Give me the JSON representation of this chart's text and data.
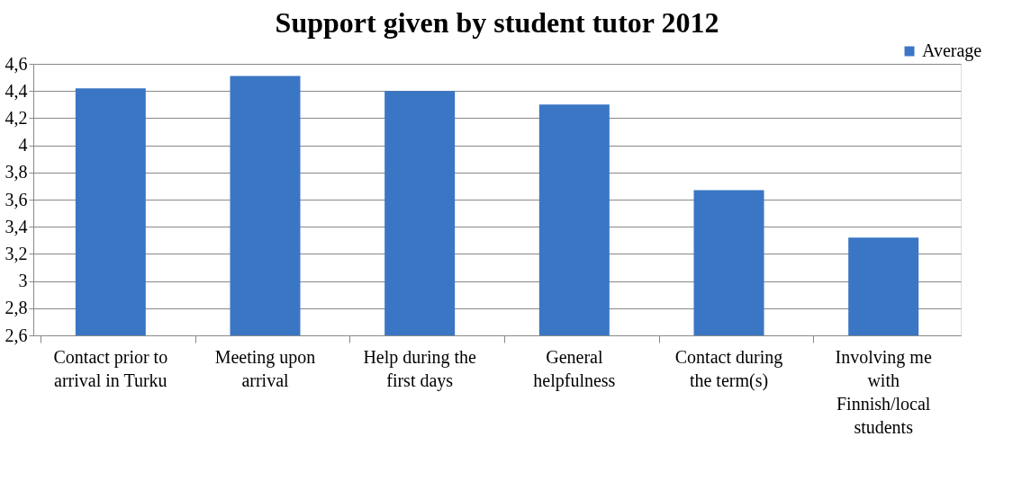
{
  "chart_data": {
    "type": "bar",
    "title": "Support given by student tutor 2012",
    "categories": [
      "Contact prior to arrival in Turku",
      "Meeting upon arrival",
      "Help during the first days",
      "General helpfulness",
      "Contact during the term(s)",
      "Involving me with Finnish/local students"
    ],
    "series": [
      {
        "name": "Average",
        "color": "#3a76c4",
        "values": [
          4.42,
          4.51,
          4.4,
          4.3,
          3.67,
          3.32
        ]
      }
    ],
    "ylim": [
      2.6,
      4.6
    ],
    "yticks": [
      {
        "value": 2.6,
        "label": "2,6"
      },
      {
        "value": 2.8,
        "label": "2,8"
      },
      {
        "value": 3,
        "label": "3"
      },
      {
        "value": 3.2,
        "label": "3,2"
      },
      {
        "value": 3.4,
        "label": "3,4"
      },
      {
        "value": 3.6,
        "label": "3,6"
      },
      {
        "value": 3.8,
        "label": "3,8"
      },
      {
        "value": 4,
        "label": "4"
      },
      {
        "value": 4.2,
        "label": "4,2"
      },
      {
        "value": 4.4,
        "label": "4,4"
      },
      {
        "value": 4.6,
        "label": "4,6"
      }
    ],
    "grid": "y",
    "legend": "top right"
  }
}
